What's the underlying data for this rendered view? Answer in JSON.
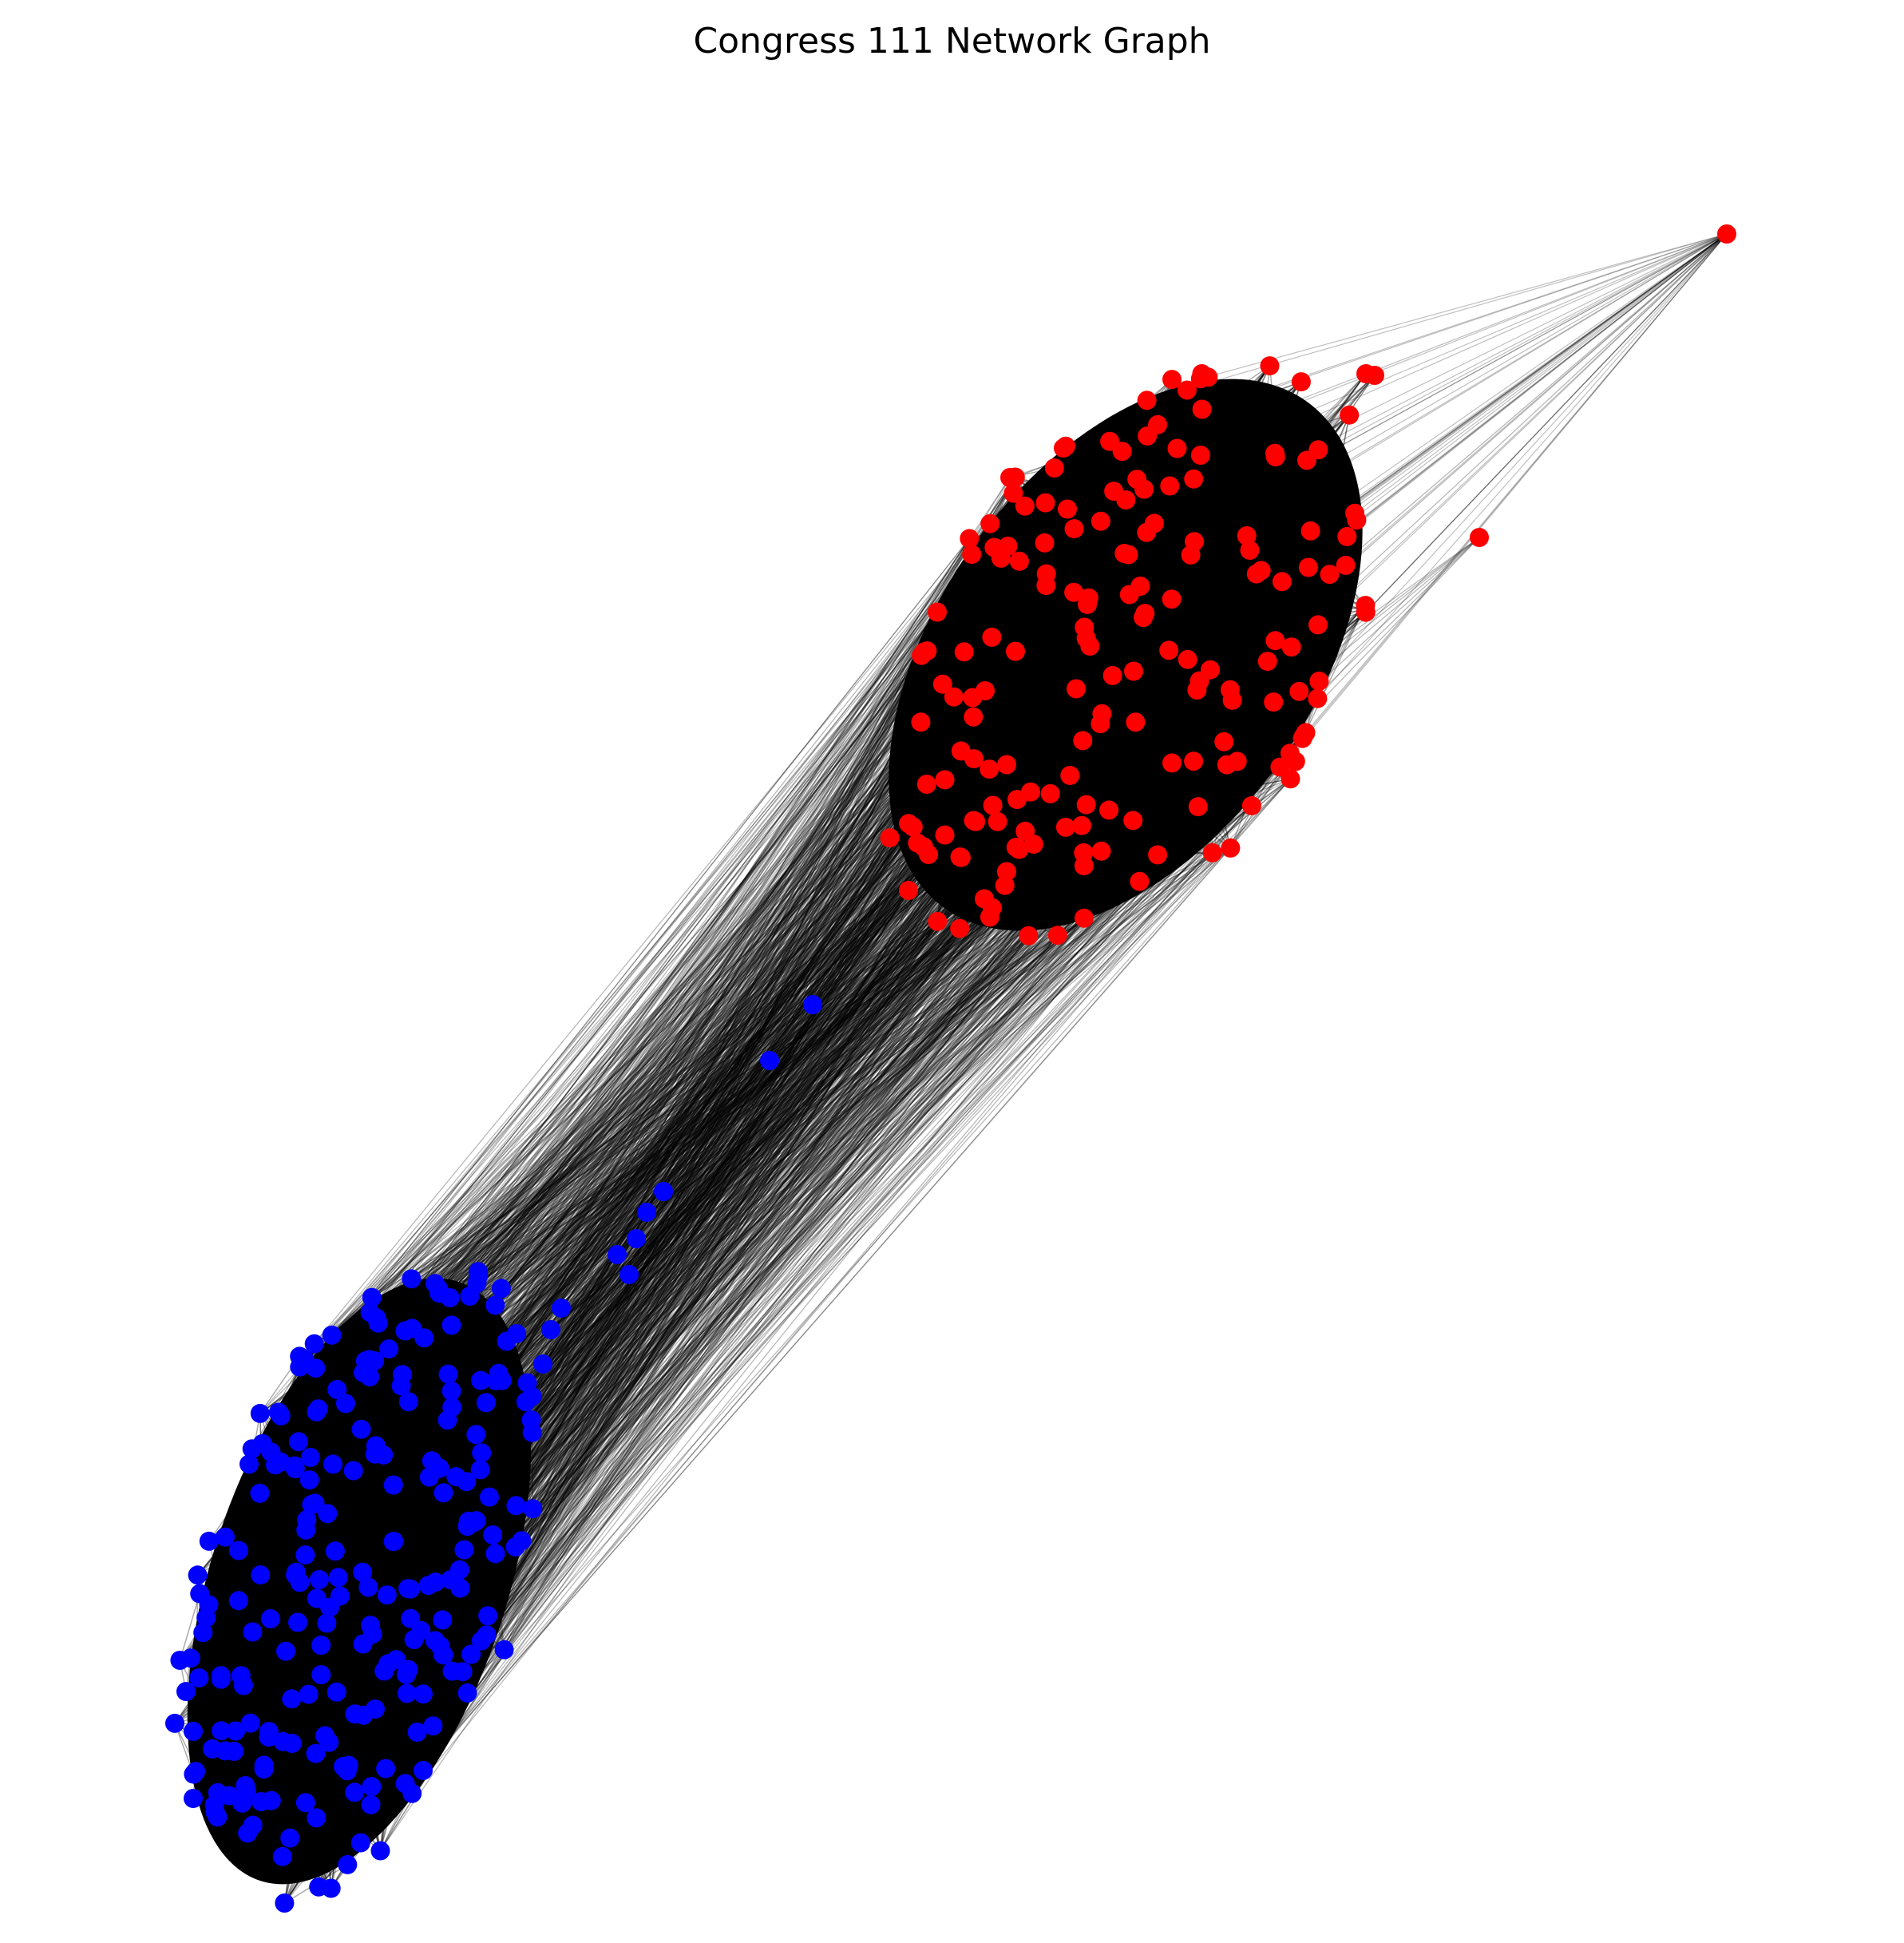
{
  "title": "Congress 111 Network Graph",
  "colors": {
    "red_party": "#ff0000",
    "blue_party": "#0000ff",
    "edges": "#000000",
    "background": "#ffffff"
  },
  "legend": null,
  "axes_visible": false
}
